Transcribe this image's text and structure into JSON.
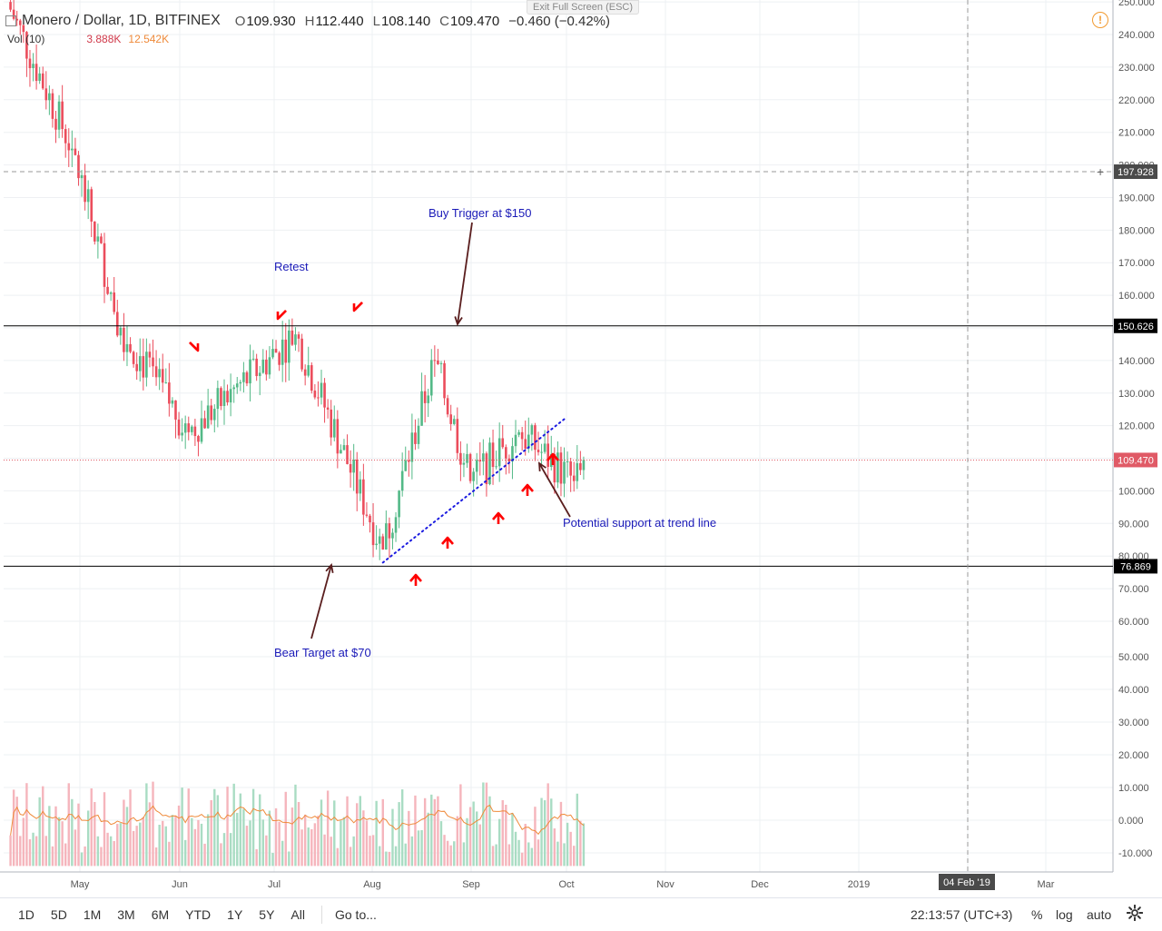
{
  "header": {
    "symbol": "Monero / Dollar, 1D, BITFINEX",
    "open_label": "O",
    "open": "109.930",
    "high_label": "H",
    "high": "112.440",
    "low_label": "L",
    "low": "108.140",
    "close_label": "C",
    "close": "109.470",
    "change": "−0.460 (−0.42%)"
  },
  "volume_legend": {
    "label": "Vol (10)",
    "value1": "3.888K",
    "value2": "12.542K"
  },
  "exit_full_screen": "Exit Full Screen (ESC)",
  "colors": {
    "up": "#53b987",
    "down": "#eb4d5c",
    "annotation": "#1a1ab8",
    "arrow": "#ff0000",
    "volume_ma": "#ef8a3a",
    "grid": "#eef0f3",
    "level_line": "#000000"
  },
  "chart_data": {
    "type": "candlestick",
    "symbol": "Monero / Dollar",
    "timeframe": "1D",
    "exchange": "BITFINEX",
    "price_axis": {
      "ticks": [
        250,
        240,
        230,
        220,
        210,
        200,
        190,
        180,
        170,
        160,
        150,
        140,
        130,
        120,
        110,
        100,
        90,
        80,
        70,
        60
      ],
      "tick_labels": [
        "250.000",
        "240.000",
        "230.000",
        "220.000",
        "210.000",
        "200.000",
        "190.000",
        "180.000",
        "170.000",
        "160.000",
        "150.000",
        "140.000",
        "130.000",
        "120.000",
        "110.000",
        "100.000",
        "90.000",
        "80.000",
        "70.000",
        "60.000"
      ]
    },
    "volume_axis": {
      "ticks": [
        50,
        40,
        30,
        20,
        10,
        0,
        -10
      ],
      "tick_labels": [
        "50.000",
        "40.000",
        "30.000",
        "20.000",
        "10.000",
        "0.000",
        "-10.000"
      ]
    },
    "time_axis": {
      "labels": [
        "May",
        "Jun",
        "Jul",
        "Aug",
        "Sep",
        "Oct",
        "Nov",
        "Dec",
        "2019",
        "04 Feb '19",
        "Mar"
      ]
    },
    "horizontal_levels": [
      {
        "value": 150.626,
        "label": "150.626"
      },
      {
        "value": 76.869,
        "label": "76.869"
      }
    ],
    "crosshair": {
      "price_label": "197.928",
      "date_label": "04 Feb '19"
    },
    "last_price": {
      "value": 109.47,
      "label": "109.470"
    },
    "trend_line": {
      "from": {
        "date": "2018-08-14",
        "price": 78
      },
      "to": {
        "date": "2018-10-09",
        "price": 122
      }
    },
    "annotations": [
      {
        "text": "Buy Trigger at $150"
      },
      {
        "text": "Retest"
      },
      {
        "text": "Potential support at trend line"
      },
      {
        "text": "Bear Target at $70"
      }
    ],
    "key_closes": [
      {
        "date": "2018-04-20",
        "close": 250
      },
      {
        "date": "2018-05-10",
        "close": 205
      },
      {
        "date": "2018-05-25",
        "close": 150
      },
      {
        "date": "2018-06-15",
        "close": 118
      },
      {
        "date": "2018-07-18",
        "close": 148
      },
      {
        "date": "2018-08-14",
        "close": 82
      },
      {
        "date": "2018-08-30",
        "close": 140
      },
      {
        "date": "2018-09-10",
        "close": 103
      },
      {
        "date": "2018-09-25",
        "close": 118
      },
      {
        "date": "2018-10-12",
        "close": 103
      },
      {
        "date": "2018-10-15",
        "close": 109.47
      }
    ]
  },
  "bottom_bar": {
    "timeframes": [
      "1D",
      "5D",
      "1M",
      "3M",
      "6M",
      "YTD",
      "1Y",
      "5Y",
      "All"
    ],
    "goto": "Go to...",
    "time": "22:13:57 (UTC+3)",
    "percent": "%",
    "log": "log",
    "auto": "auto"
  }
}
